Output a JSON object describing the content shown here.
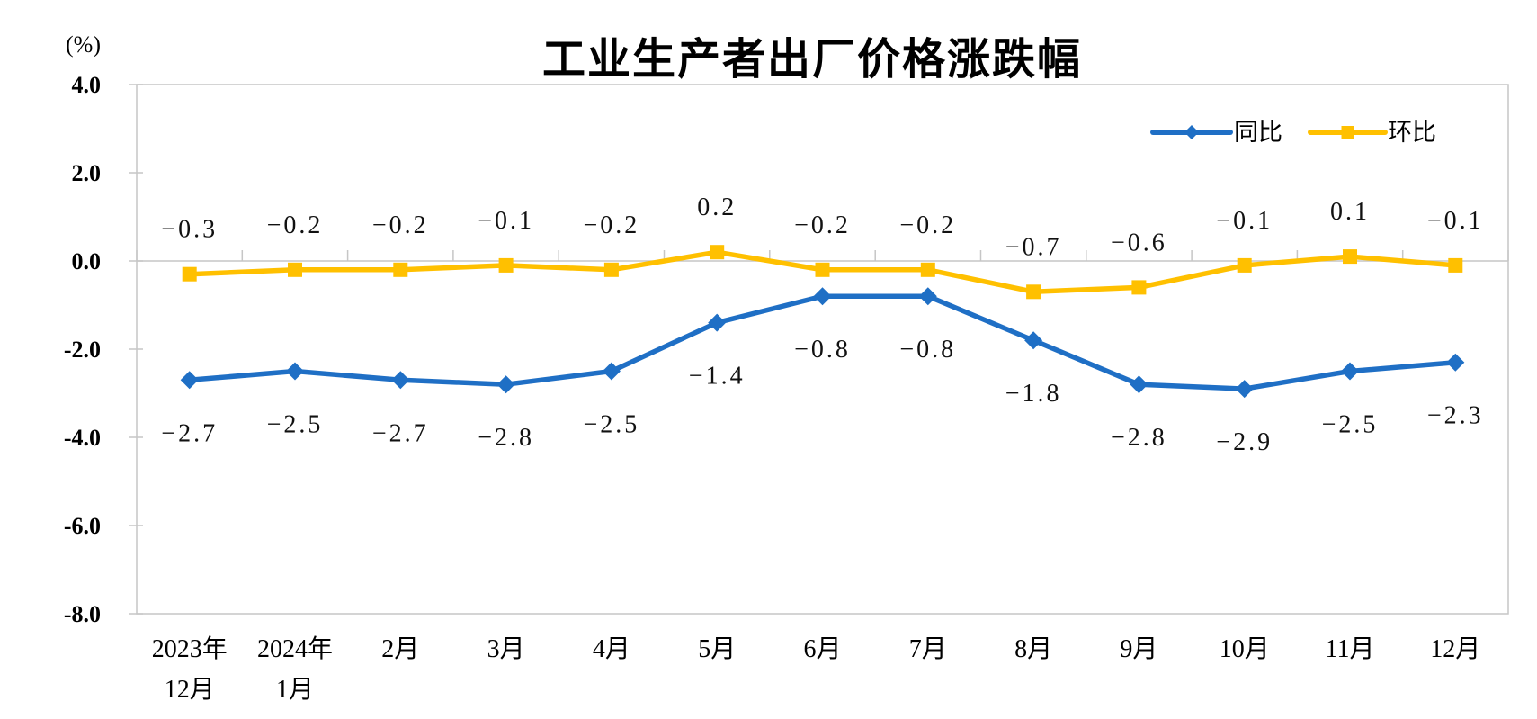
{
  "chart_data": {
    "type": "line",
    "title": "工业生产者出厂价格涨跌幅",
    "unit_label": "(%)",
    "categories": [
      [
        "2023年",
        "12月"
      ],
      [
        "2024年",
        "1月"
      ],
      [
        "2月"
      ],
      [
        "3月"
      ],
      [
        "4月"
      ],
      [
        "5月"
      ],
      [
        "6月"
      ],
      [
        "7月"
      ],
      [
        "8月"
      ],
      [
        "9月"
      ],
      [
        "10月"
      ],
      [
        "11月"
      ],
      [
        "12月"
      ]
    ],
    "series": [
      {
        "name": "同比",
        "color": "#1F6FC5",
        "marker": "diamond",
        "label_position": "below",
        "values": [
          -2.7,
          -2.5,
          -2.7,
          -2.8,
          -2.5,
          -1.4,
          -0.8,
          -0.8,
          -1.8,
          -2.8,
          -2.9,
          -2.5,
          -2.3
        ]
      },
      {
        "name": "环比",
        "color": "#FFC000",
        "marker": "square",
        "label_position": "above",
        "values": [
          -0.3,
          -0.2,
          -0.2,
          -0.1,
          -0.2,
          0.2,
          -0.2,
          -0.2,
          -0.7,
          -0.6,
          -0.1,
          0.1,
          -0.1
        ]
      }
    ],
    "y_ticks": [
      4.0,
      2.0,
      0.0,
      -2.0,
      -4.0,
      -6.0,
      -8.0
    ],
    "ylim": [
      -8,
      4
    ],
    "grid": false,
    "legend": {
      "position": "top-right"
    },
    "colors": {
      "axis_gray": "#C6C6C6",
      "text_black": "#000000"
    }
  }
}
